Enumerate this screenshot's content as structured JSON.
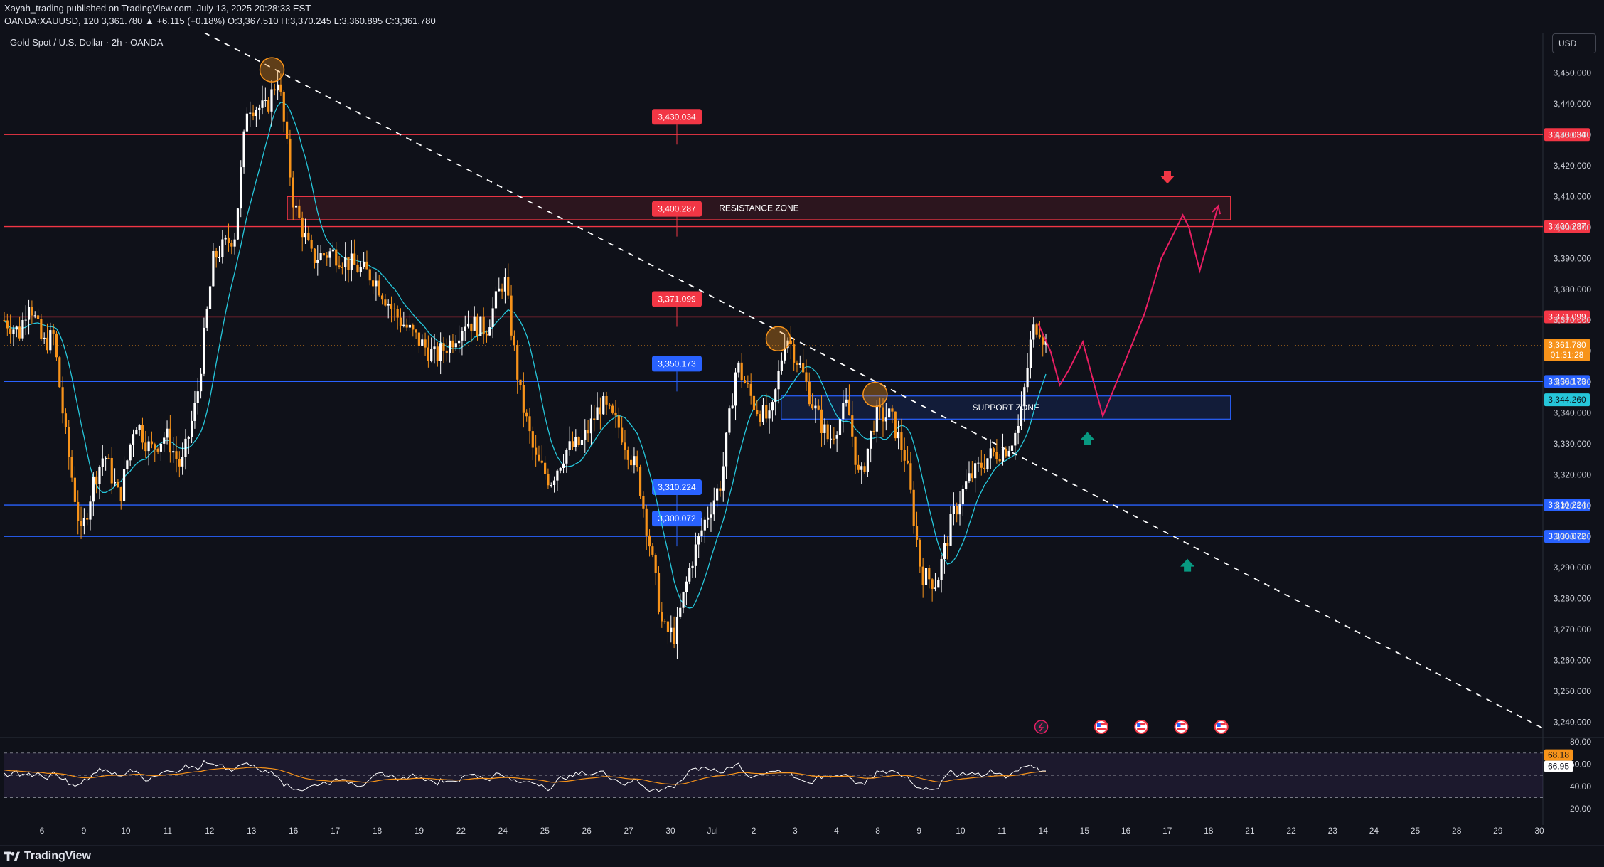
{
  "header": {
    "publish_line": "Xayah_trading published on TradingView.com, July 13, 2025 20:28:33 EST",
    "ohlc_line": "OANDA:XAUUSD, 120  3,361.780  ▲ +6.115 (+0.18%)  O:3,367.510  H:3,370.245  L:3,360.895  C:3,361.780"
  },
  "chart_title": "Gold Spot / U.S. Dollar · 2h · OANDA",
  "currency_button": "USD",
  "footer": {
    "brand": "TradingView"
  },
  "colors": {
    "background": "#0f1119",
    "bull_candle": "#ffffff",
    "bear_candle": "#f7931a",
    "resistance_line": "#f23645",
    "support_line": "#2962ff",
    "ma_line": "#26c6da",
    "projection": "#e91e63",
    "arrow_up": "#089981",
    "arrow_down": "#f23645"
  },
  "chart_data": {
    "type": "candlestick",
    "symbol": "OANDA:XAUUSD",
    "timeframe": "2h",
    "y_axis": {
      "range": [
        3235,
        3463
      ],
      "ticks": [
        "3,450.000",
        "3,440.000",
        "3,430.000",
        "3,420.000",
        "3,410.000",
        "3,400.000",
        "3,390.000",
        "3,380.000",
        "3,370.000",
        "3,360.000",
        "3,350.000",
        "3,340.000",
        "3,330.000",
        "3,320.000",
        "3,310.000",
        "3,300.000",
        "3,290.000",
        "3,280.000",
        "3,270.000",
        "3,260.000",
        "3,250.000",
        "3,240.000"
      ],
      "tick_values": [
        3450,
        3440,
        3430,
        3420,
        3410,
        3400,
        3390,
        3380,
        3370,
        3360,
        3350,
        3340,
        3330,
        3320,
        3310,
        3300,
        3290,
        3280,
        3270,
        3260,
        3250,
        3240
      ]
    },
    "x_axis": {
      "labels": [
        "6",
        "9",
        "10",
        "11",
        "12",
        "13",
        "16",
        "17",
        "18",
        "19",
        "22",
        "24",
        "25",
        "26",
        "27",
        "30",
        "Jul",
        "2",
        "3",
        "4",
        "8",
        "9",
        "10",
        "11",
        "14",
        "15",
        "16",
        "17",
        "18",
        "21",
        "22",
        "23",
        "24",
        "25",
        "28",
        "29",
        "30"
      ]
    },
    "horizontal_levels": [
      {
        "value": 3430.034,
        "label": "3,430.034",
        "kind": "resistance"
      },
      {
        "value": 3400.287,
        "label": "3,400.287",
        "kind": "resistance"
      },
      {
        "value": 3371.099,
        "label": "3,371.099",
        "kind": "resistance"
      },
      {
        "value": 3350.173,
        "label": "3,350.173",
        "kind": "support"
      },
      {
        "value": 3310.224,
        "label": "3,310.224",
        "kind": "support"
      },
      {
        "value": 3300.072,
        "label": "3,300.072",
        "kind": "support"
      }
    ],
    "current_price": {
      "value": 3361.78,
      "label": "3,361.780",
      "countdown": "01:31:28"
    },
    "ma_value_label": {
      "value": 3344.26,
      "label": "3,344.260"
    },
    "zones": [
      {
        "label": "RESISTANCE ZONE",
        "low": 3402.5,
        "high": 3410.0,
        "x_start": 0.184,
        "x_end": 0.797
      },
      {
        "label": "SUPPORT ZONE",
        "low": 3338.0,
        "high": 3345.5,
        "x_start": 0.505,
        "x_end": 0.797
      }
    ],
    "trendline": {
      "style": "dashed",
      "from": {
        "x": 0.13,
        "y": 3463
      },
      "to": {
        "x": 1.0,
        "y": 3238
      }
    },
    "touch_points": [
      {
        "x": 0.174,
        "y": 3451
      },
      {
        "x": 0.503,
        "y": 3364
      },
      {
        "x": 0.566,
        "y": 3346
      }
    ],
    "projection_path": [
      {
        "x": 0.672,
        "y": 3369
      },
      {
        "x": 0.68,
        "y": 3360
      },
      {
        "x": 0.686,
        "y": 3349
      },
      {
        "x": 0.692,
        "y": 3354
      },
      {
        "x": 0.701,
        "y": 3363
      },
      {
        "x": 0.708,
        "y": 3350
      },
      {
        "x": 0.714,
        "y": 3339
      },
      {
        "x": 0.741,
        "y": 3372
      },
      {
        "x": 0.752,
        "y": 3390
      },
      {
        "x": 0.766,
        "y": 3404
      },
      {
        "x": 0.77,
        "y": 3400
      },
      {
        "x": 0.777,
        "y": 3386
      },
      {
        "x": 0.789,
        "y": 3407
      }
    ],
    "arrows": [
      {
        "direction": "down",
        "x": 0.756,
        "y": 3416
      },
      {
        "direction": "up",
        "x": 0.704,
        "y": 3332
      },
      {
        "direction": "up",
        "x": 0.769,
        "y": 3291
      }
    ],
    "event_icons": {
      "x": [
        0.674,
        0.713,
        0.739,
        0.765,
        0.791
      ]
    },
    "rsi": {
      "ticks": [
        "80.00",
        "60.00",
        "40.00",
        "20.00"
      ],
      "tick_values": [
        80,
        60,
        40,
        20
      ],
      "range": [
        15,
        82
      ],
      "band": [
        30,
        70
      ],
      "value_labels": [
        "68.18",
        "66.95"
      ],
      "values": [
        68.18,
        66.95
      ]
    }
  }
}
